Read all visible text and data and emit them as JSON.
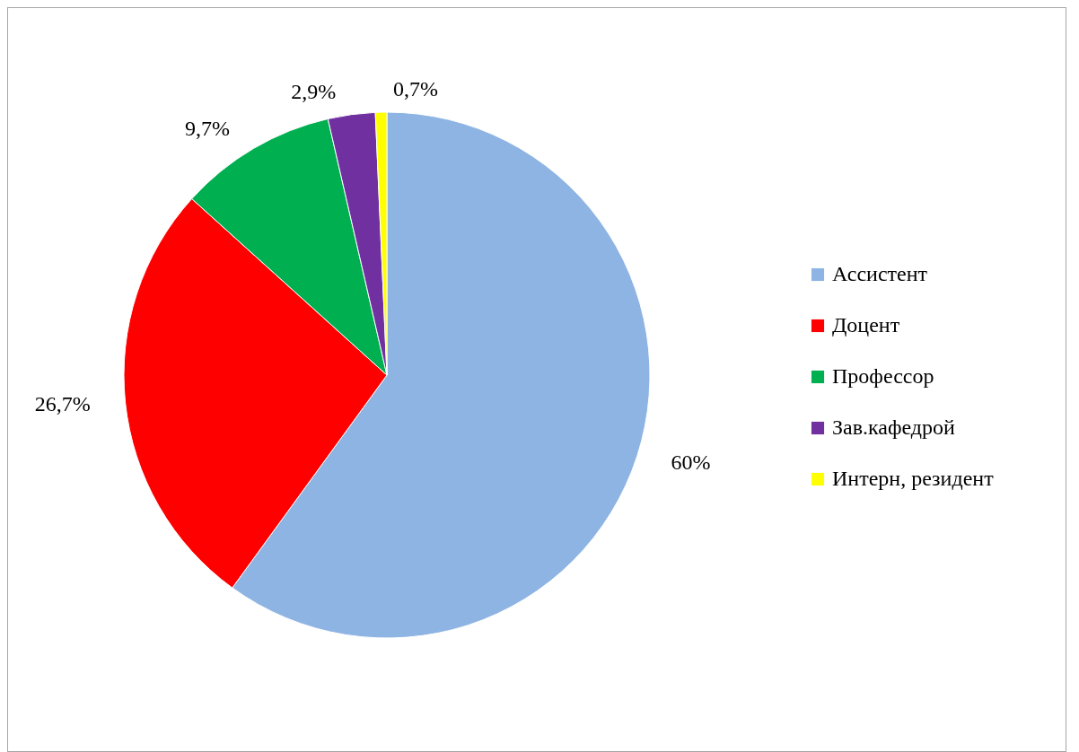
{
  "chart_data": {
    "type": "pie",
    "categories": [
      "Ассистент",
      "Доцент",
      "Профессор",
      "Зав.кафедрой",
      "Интерн, резидент"
    ],
    "values": [
      60,
      26.7,
      9.7,
      2.9,
      0.7
    ],
    "value_labels": [
      "60%",
      "26,7%",
      "9,7%",
      "2,9%",
      "0,7%"
    ],
    "colors": [
      "#8eb4e3",
      "#ff0000",
      "#00b050",
      "#7030a0",
      "#ffff00"
    ],
    "legend": "right"
  }
}
